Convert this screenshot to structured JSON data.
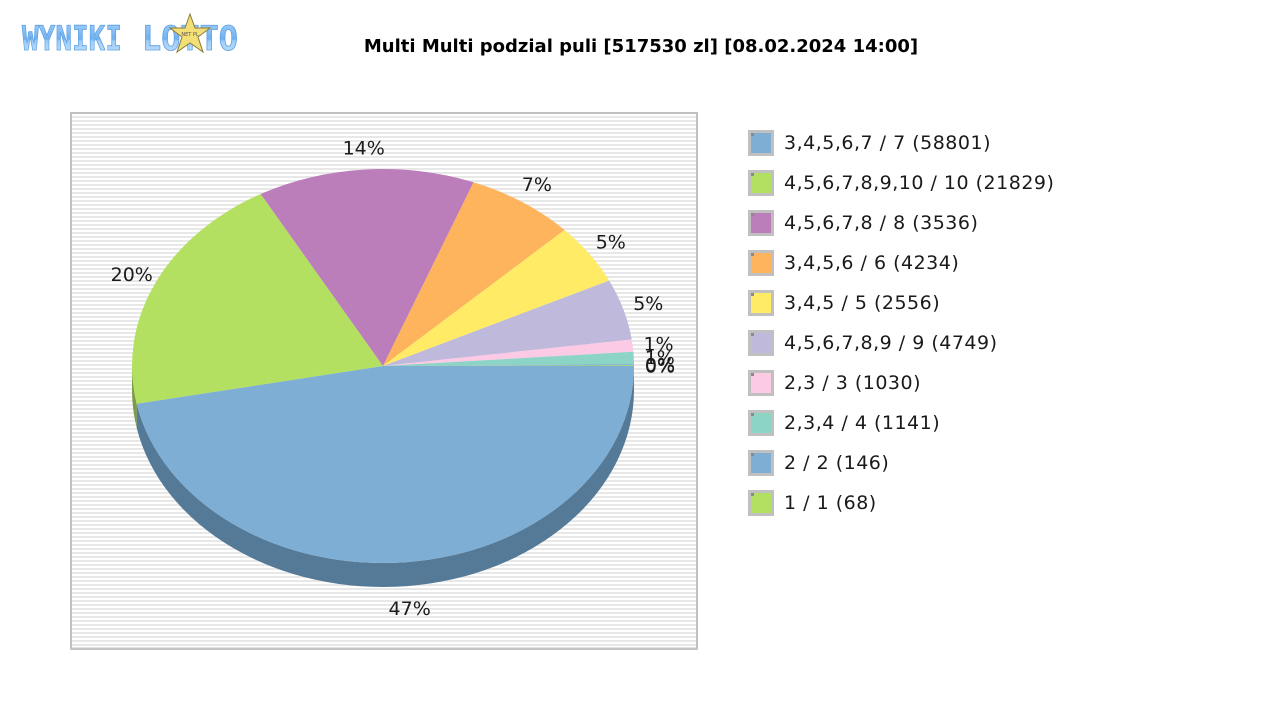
{
  "logo": {
    "text_left": "WYNIKI",
    "text_right": "LOTTO",
    "star_text": "NET PL"
  },
  "title": "Multi Multi podzial puli [517530 zl] [08.02.2024 14:00]",
  "chart_data": {
    "type": "pie",
    "title": "Multi Multi podzial puli [517530 zl] [08.02.2024 14:00]",
    "style": "3d-pie",
    "start_angle_deg": 0,
    "direction": "clockwise",
    "legend_position": "right",
    "series": [
      {
        "name": "3,4,5,6,7 / 7 (58801)",
        "label": "47%",
        "value": 47,
        "color": "#7eaed4",
        "shadow": "#557a98"
      },
      {
        "name": "4,5,6,7,8,9,10 / 10 (21829)",
        "label": "20%",
        "value": 20,
        "color": "#b3e061",
        "shadow": "#7d9c44"
      },
      {
        "name": "4,5,6,7,8 / 8 (3536)",
        "label": "14%",
        "value": 14,
        "color": "#bc7dbb",
        "shadow": "#845883"
      },
      {
        "name": "3,4,5,6 / 6 (4234)",
        "label": "7%",
        "value": 7,
        "color": "#feb45d",
        "shadow": "#b27e41"
      },
      {
        "name": "3,4,5 / 5 (2556)",
        "label": "5%",
        "value": 5,
        "color": "#ffeb66",
        "shadow": "#b3a447"
      },
      {
        "name": "4,5,6,7,8,9 / 9 (4749)",
        "label": "5%",
        "value": 5,
        "color": "#bfb9db",
        "shadow": "#868199"
      },
      {
        "name": "2,3 / 3 (1030)",
        "label": "1%",
        "value": 1,
        "color": "#fdcae5",
        "shadow": "#b18da0"
      },
      {
        "name": "2,3,4 / 4 (1141)",
        "label": "1%",
        "value": 1,
        "color": "#8cd4c5",
        "shadow": "#62948a"
      },
      {
        "name": "2 / 2 (146)",
        "label": "0%",
        "value": 0.1,
        "color": "#7eaed4",
        "shadow": "#557a98"
      },
      {
        "name": "1 / 1 (68)",
        "label": "0%",
        "value": 0.05,
        "color": "#b3e061",
        "shadow": "#7d9c44"
      }
    ]
  },
  "legend": {
    "items": [
      {
        "label": "3,4,5,6,7 / 7 (58801)",
        "color": "#7eaed4"
      },
      {
        "label": "4,5,6,7,8,9,10 / 10 (21829)",
        "color": "#b3e061"
      },
      {
        "label": "4,5,6,7,8 / 8 (3536)",
        "color": "#bc7dbb"
      },
      {
        "label": "3,4,5,6 / 6 (4234)",
        "color": "#feb45d"
      },
      {
        "label": "3,4,5 / 5 (2556)",
        "color": "#ffeb66"
      },
      {
        "label": "4,5,6,7,8,9 / 9 (4749)",
        "color": "#bfb9db"
      },
      {
        "label": "2,3 / 3 (1030)",
        "color": "#fdcae5"
      },
      {
        "label": "2,3,4 / 4 (1141)",
        "color": "#8cd4c5"
      },
      {
        "label": "2 / 2 (146)",
        "color": "#7eaed4"
      },
      {
        "label": "1 / 1 (68)",
        "color": "#b3e061"
      }
    ]
  }
}
